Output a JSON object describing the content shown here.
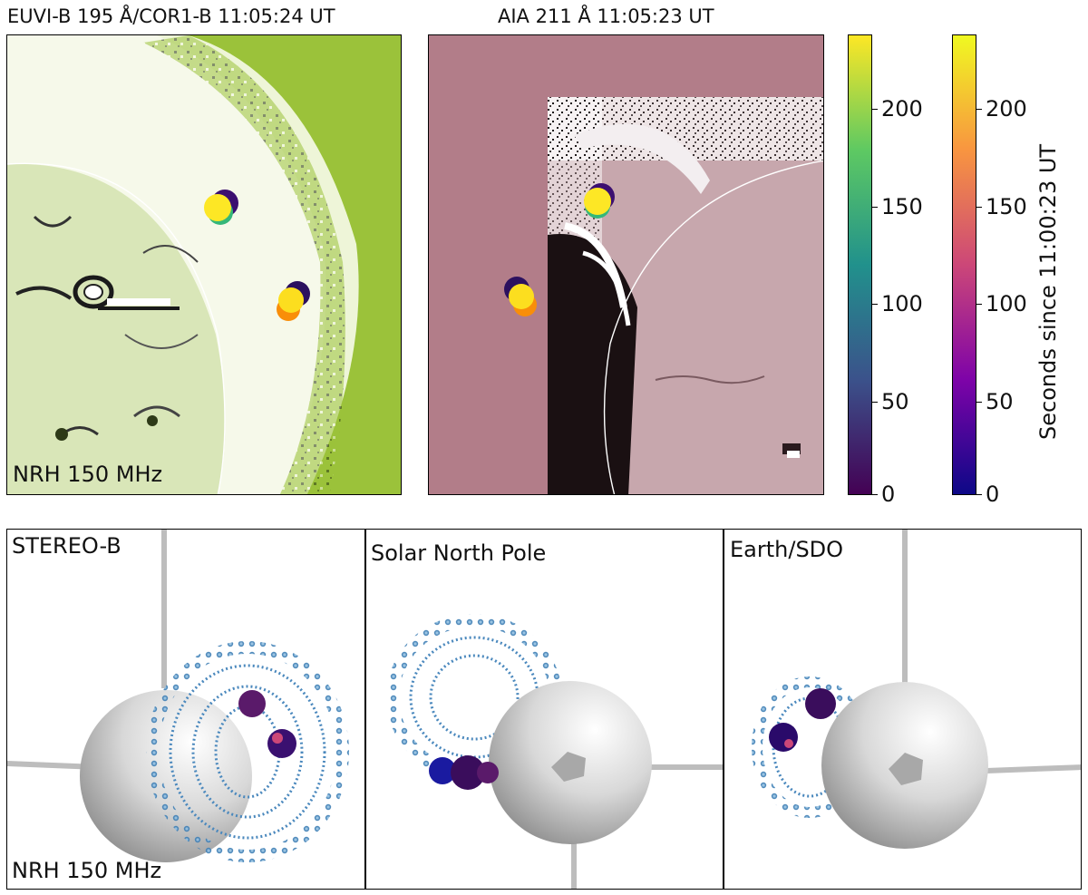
{
  "top_panels": {
    "left": {
      "title": "EUVI-B 195 Å/COR1-B 11:05:24 UT",
      "label": "NRH 150 MHz",
      "colors": {
        "background": "#9bc23a",
        "disk": "#d6e3b6",
        "halo": "#f7faea"
      }
    },
    "right": {
      "title": "AIA 211 Å 11:05:23 UT",
      "colors": {
        "background": "#b27d89",
        "disk": "#c8a6ac"
      }
    }
  },
  "colorbars": [
    {
      "name": "viridis",
      "ticks": [
        "0",
        "50",
        "100",
        "150",
        "200"
      ]
    },
    {
      "name": "plasma",
      "ticks": [
        "0",
        "50",
        "100",
        "150",
        "200"
      ],
      "label": "Seconds since 11:00:23 UT"
    }
  ],
  "bottom_panels": [
    {
      "label": "STEREO-B",
      "sublabel": "NRH 150 MHz"
    },
    {
      "label": "Solar North Pole"
    },
    {
      "label": "Earth/SDO"
    }
  ]
}
